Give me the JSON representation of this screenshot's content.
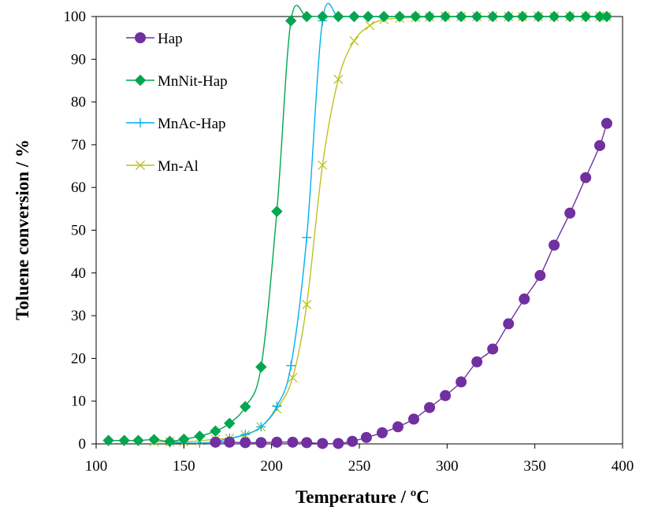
{
  "chart_data": {
    "type": "line",
    "title": "",
    "xlabel": "Temperature / ºC",
    "ylabel": "Toluene conversion / %",
    "xlim": [
      100,
      400
    ],
    "ylim": [
      0,
      100
    ],
    "xticks": [
      100,
      150,
      200,
      250,
      300,
      350,
      400
    ],
    "yticks": [
      0,
      10,
      20,
      30,
      40,
      50,
      60,
      70,
      80,
      90,
      100
    ],
    "grid": false,
    "legend_position": "top-left",
    "series": [
      {
        "name": "Hap",
        "color": "#7030A0",
        "marker": "circle",
        "x": [
          168,
          176,
          185,
          194,
          203,
          212,
          220,
          229,
          238,
          246,
          254,
          263,
          272,
          281,
          290,
          299,
          308,
          317,
          326,
          335,
          344,
          353,
          361,
          370,
          379,
          387,
          391
        ],
        "y": [
          0.4,
          0.4,
          0.3,
          0.3,
          0.4,
          0.4,
          0.3,
          0.1,
          0.1,
          0.6,
          1.5,
          2.6,
          4.0,
          5.8,
          8.5,
          11.3,
          14.5,
          19.2,
          22.2,
          28.1,
          33.9,
          39.4,
          46.5,
          54.0,
          62.3,
          69.8,
          75.0
        ]
      },
      {
        "name": "MnNit-Hap",
        "color": "#00A650",
        "marker": "diamond",
        "x": [
          107,
          116,
          124,
          133,
          142,
          150,
          159,
          168,
          176,
          185,
          194,
          203,
          211,
          220,
          229,
          238,
          247,
          255,
          264,
          273,
          282,
          290,
          299,
          308,
          317,
          326,
          335,
          343,
          352,
          361,
          370,
          379,
          387,
          391
        ],
        "y": [
          0.8,
          0.8,
          0.8,
          1.0,
          0.6,
          1.1,
          1.8,
          3.0,
          4.8,
          8.7,
          18.0,
          54.4,
          99.0,
          100,
          100,
          100,
          100,
          100,
          100,
          100,
          100,
          100,
          100,
          100,
          100,
          100,
          100,
          100,
          100,
          100,
          100,
          100,
          100,
          100
        ]
      },
      {
        "name": "MnAc-Hap",
        "color": "#00B0F0",
        "marker": "plus",
        "x": [
          142,
          150,
          159,
          168,
          176,
          185,
          194,
          203,
          211,
          220,
          229,
          238,
          247,
          255,
          264,
          273,
          282,
          290,
          299,
          308,
          317,
          326,
          335,
          343,
          352,
          361,
          370,
          379,
          387,
          391
        ],
        "y": [
          0.3,
          0.2,
          0.2,
          0.5,
          1.3,
          2.2,
          4.0,
          8.8,
          18.3,
          48.3,
          99.0,
          100,
          100,
          100,
          100,
          100,
          100,
          100,
          100,
          100,
          100,
          100,
          100,
          100,
          100,
          100,
          100,
          100,
          100,
          100
        ]
      },
      {
        "name": "Mn-Al",
        "color": "#BFBF1F",
        "marker": "x",
        "x": [
          133,
          142,
          150,
          159,
          168,
          176,
          185,
          194,
          203,
          212,
          220,
          229,
          238,
          247,
          256,
          264,
          273,
          282,
          290,
          299,
          308,
          317,
          326,
          335,
          343,
          352,
          361,
          370,
          379,
          387,
          391
        ],
        "y": [
          0.5,
          0.5,
          0.5,
          0.7,
          1.1,
          1.3,
          2.1,
          4.0,
          8.2,
          15.5,
          32.6,
          65.2,
          85.3,
          94.3,
          97.9,
          99.3,
          99.6,
          99.8,
          99.9,
          100,
          100,
          100,
          100,
          100,
          100,
          100,
          100,
          100,
          100,
          100,
          100
        ]
      }
    ]
  }
}
